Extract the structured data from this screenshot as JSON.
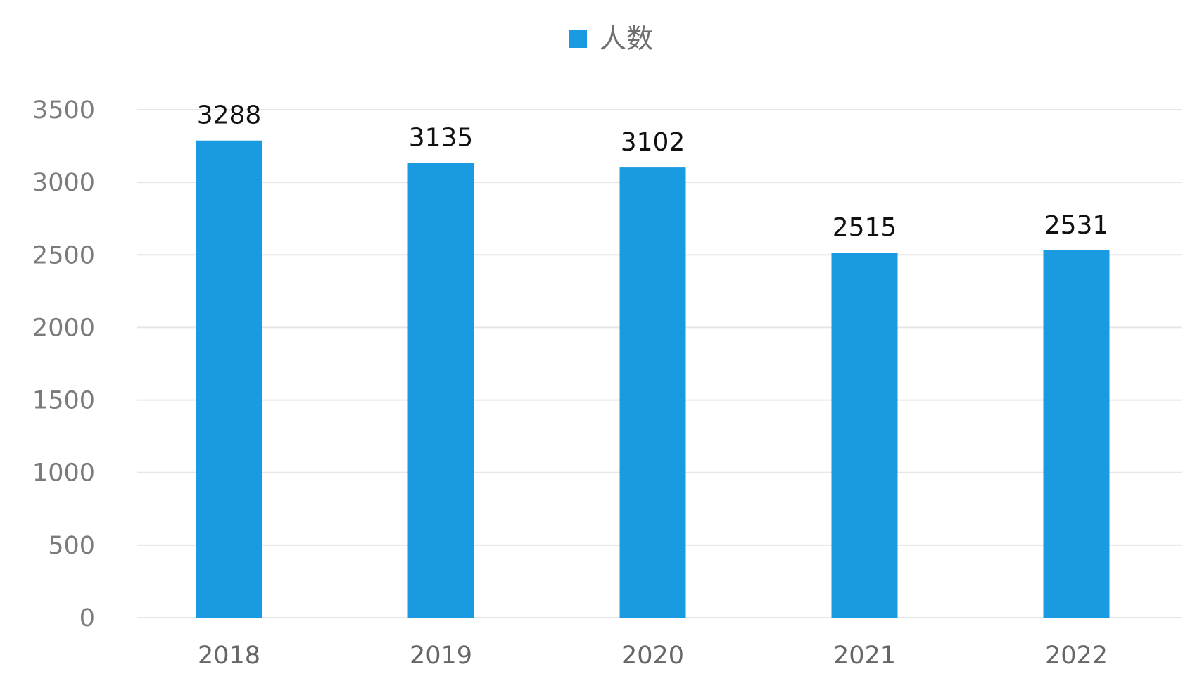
{
  "chart_data": {
    "type": "bar",
    "categories": [
      "2018",
      "2019",
      "2020",
      "2021",
      "2022"
    ],
    "series": [
      {
        "name": "人数",
        "values": [
          3288,
          3135,
          3102,
          2515,
          2531
        ]
      }
    ],
    "ylim": [
      0,
      3500
    ],
    "yticks": [
      "0",
      "500",
      "1000",
      "1500",
      "2000",
      "2500",
      "3000",
      "3500"
    ],
    "legend_position": "top-center",
    "grid": true,
    "bar_color": "#1a9ae0"
  }
}
